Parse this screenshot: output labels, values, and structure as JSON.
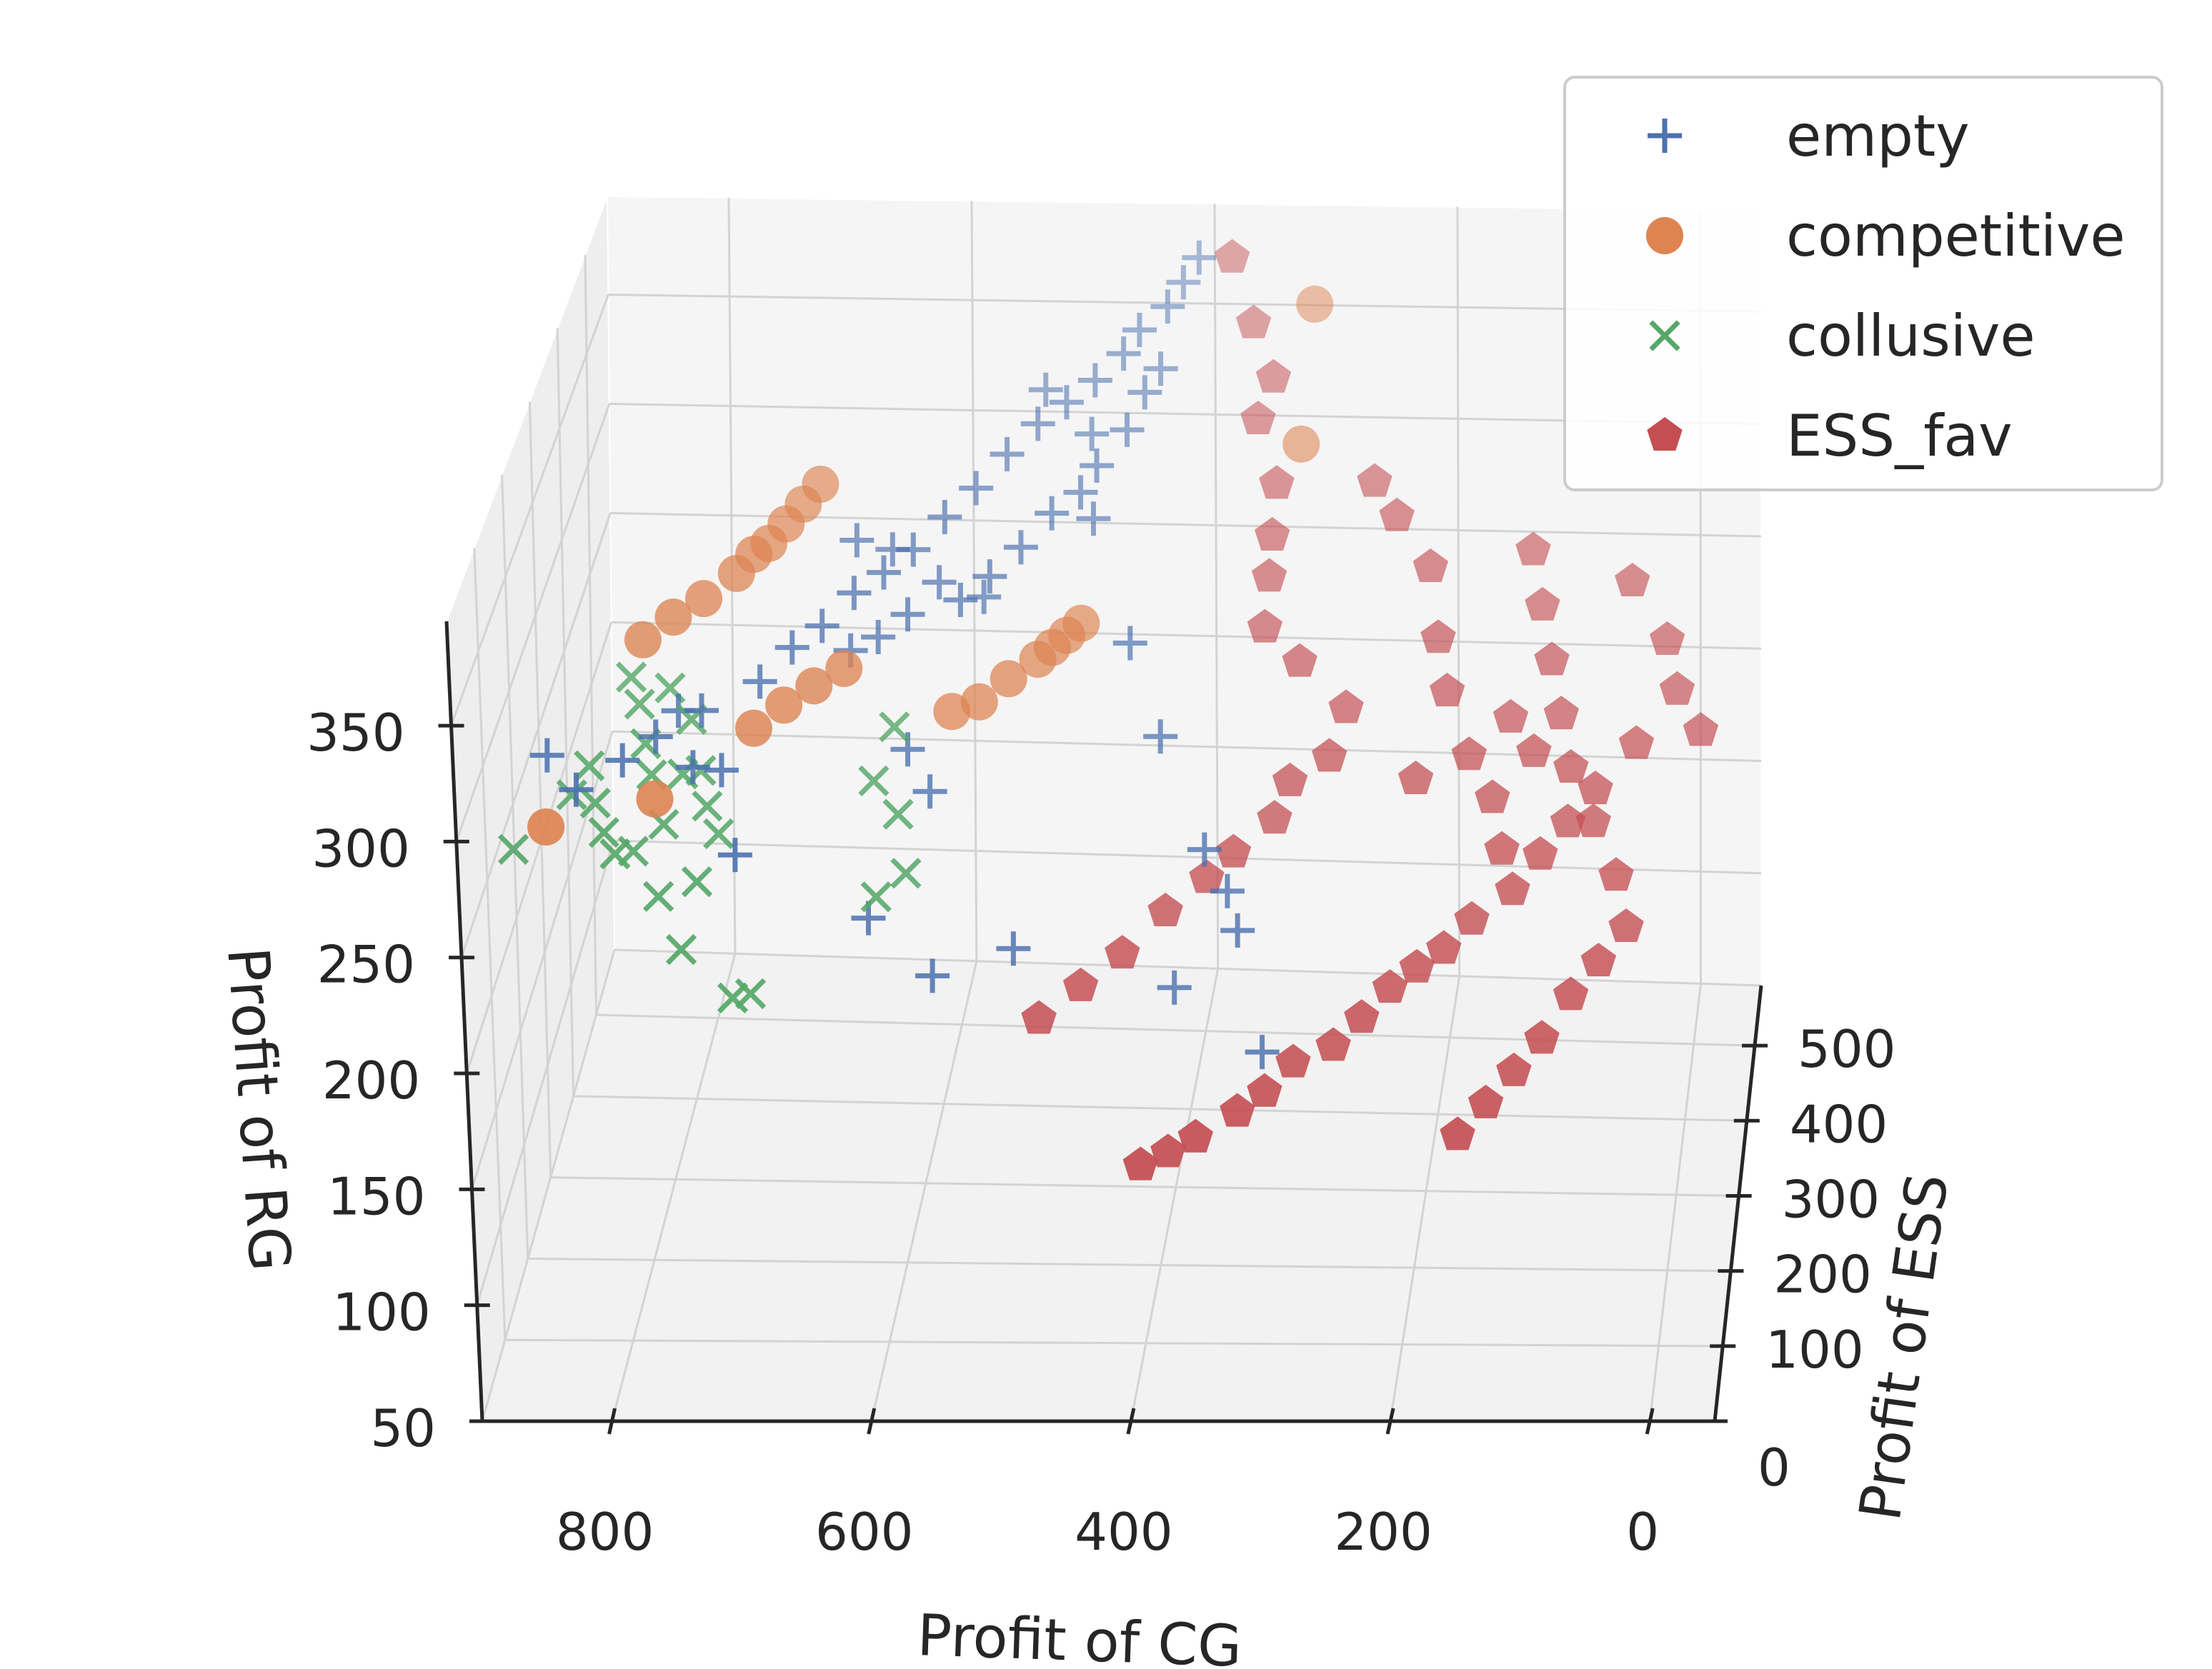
{
  "chart_data": {
    "type": "scatter",
    "projection": "3d",
    "xlabel": "Profit of CG",
    "ylabel": "Profit of ESS",
    "zlabel": "Profit of RG",
    "x_ticks": [
      "800",
      "600",
      "400",
      "200",
      "0"
    ],
    "y_ticks": [
      "0",
      "100",
      "200",
      "300",
      "400",
      "500"
    ],
    "z_ticks": [
      "50",
      "100",
      "150",
      "200",
      "250",
      "300",
      "350"
    ],
    "xlim": [
      -50,
      900
    ],
    "ylim": [
      0,
      580
    ],
    "zlim": [
      50,
      395
    ],
    "grid": true,
    "legend_position": "top-right",
    "series": [
      {
        "name": "empty",
        "marker": "plus",
        "color": "#4c72b0",
        "points": [
          [
            850,
            100,
            310
          ],
          [
            820,
            60,
            312
          ],
          [
            790,
            90,
            318
          ],
          [
            770,
            120,
            320
          ],
          [
            740,
            150,
            324
          ],
          [
            700,
            180,
            330
          ],
          [
            680,
            210,
            336
          ],
          [
            660,
            230,
            340
          ],
          [
            640,
            260,
            345
          ],
          [
            620,
            280,
            348
          ],
          [
            600,
            300,
            352
          ],
          [
            580,
            330,
            356
          ],
          [
            560,
            360,
            358
          ],
          [
            540,
            390,
            362
          ],
          [
            520,
            420,
            364
          ],
          [
            500,
            440,
            366
          ],
          [
            480,
            460,
            368
          ],
          [
            460,
            480,
            372
          ],
          [
            450,
            500,
            374
          ],
          [
            430,
            520,
            376
          ],
          [
            420,
            540,
            378
          ],
          [
            410,
            560,
            380
          ],
          [
            560,
            280,
            340
          ],
          [
            540,
            300,
            344
          ],
          [
            520,
            330,
            346
          ],
          [
            500,
            360,
            350
          ],
          [
            480,
            380,
            352
          ],
          [
            620,
            250,
            330
          ],
          [
            600,
            270,
            334
          ],
          [
            580,
            300,
            338
          ],
          [
            470,
            400,
            356
          ],
          [
            450,
            430,
            360
          ],
          [
            440,
            460,
            364
          ],
          [
            430,
            480,
            366
          ],
          [
            640,
            240,
            326
          ],
          [
            610,
            120,
            250
          ],
          [
            560,
            110,
            230
          ],
          [
            500,
            130,
            240
          ],
          [
            380,
            160,
            215
          ],
          [
            310,
            140,
            195
          ],
          [
            470,
            380,
            340
          ],
          [
            430,
            300,
            320
          ],
          [
            400,
            250,
            300
          ],
          [
            360,
            200,
            270
          ],
          [
            340,
            180,
            260
          ],
          [
            330,
            160,
            250
          ],
          [
            550,
            330,
            320
          ],
          [
            590,
            200,
            300
          ],
          [
            570,
            180,
            290
          ],
          [
            480,
            440,
            352
          ],
          [
            520,
            460,
            362
          ],
          [
            700,
            60,
            296
          ],
          [
            720,
            120,
            310
          ],
          [
            740,
            110,
            313
          ],
          [
            760,
            160,
            318
          ],
          [
            620,
            320,
            342
          ],
          [
            650,
            330,
            340
          ]
        ]
      },
      {
        "name": "competitive",
        "marker": "circle",
        "color": "#dd8452",
        "points": [
          [
            790,
            180,
            340
          ],
          [
            770,
            200,
            345
          ],
          [
            750,
            220,
            348
          ],
          [
            730,
            250,
            350
          ],
          [
            720,
            270,
            352
          ],
          [
            710,
            280,
            354
          ],
          [
            700,
            300,
            356
          ],
          [
            690,
            320,
            358
          ],
          [
            680,
            340,
            360
          ],
          [
            840,
            40,
            300
          ],
          [
            700,
            150,
            320
          ],
          [
            680,
            170,
            325
          ],
          [
            660,
            190,
            328
          ],
          [
            640,
            210,
            330
          ],
          [
            560,
            230,
            308
          ],
          [
            540,
            240,
            310
          ],
          [
            520,
            260,
            314
          ],
          [
            500,
            280,
            316
          ],
          [
            490,
            290,
            318
          ],
          [
            480,
            300,
            320
          ],
          [
            470,
            310,
            322
          ],
          [
            310,
            520,
            380
          ],
          [
            310,
            430,
            360
          ],
          [
            760,
            60,
            315
          ]
        ]
      },
      {
        "name": "collusive",
        "marker": "x",
        "color": "#55a868",
        "points": [
          [
            810,
            80,
            300
          ],
          [
            800,
            60,
            295
          ],
          [
            790,
            50,
            290
          ],
          [
            780,
            70,
            285
          ],
          [
            770,
            100,
            310
          ],
          [
            760,
            90,
            292
          ],
          [
            750,
            120,
            305
          ],
          [
            740,
            140,
            300
          ],
          [
            730,
            60,
            280
          ],
          [
            720,
            100,
            288
          ],
          [
            820,
            110,
            305
          ],
          [
            830,
            90,
            298
          ],
          [
            760,
            60,
            270
          ],
          [
            740,
            40,
            255
          ],
          [
            700,
            30,
            240
          ],
          [
            690,
            50,
            235
          ],
          [
            780,
            130,
            312
          ],
          [
            790,
            160,
            318
          ],
          [
            800,
            180,
            322
          ],
          [
            610,
            160,
            300
          ],
          [
            600,
            200,
            310
          ],
          [
            590,
            150,
            290
          ],
          [
            580,
            120,
            275
          ],
          [
            600,
            100,
            270
          ],
          [
            870,
            60,
            280
          ],
          [
            750,
            160,
            315
          ],
          [
            770,
            180,
            320
          ],
          [
            730,
            110,
            296
          ]
        ]
      },
      {
        "name": "ESS_fav",
        "marker": "pentagon",
        "color": "#c44e52",
        "points": [
          [
            380,
            540,
            390
          ],
          [
            360,
            520,
            370
          ],
          [
            340,
            490,
            360
          ],
          [
            350,
            470,
            350
          ],
          [
            330,
            430,
            340
          ],
          [
            330,
            400,
            330
          ],
          [
            330,
            380,
            320
          ],
          [
            330,
            350,
            310
          ],
          [
            300,
            330,
            305
          ],
          [
            260,
            300,
            300
          ],
          [
            270,
            270,
            290
          ],
          [
            300,
            260,
            280
          ],
          [
            310,
            240,
            270
          ],
          [
            340,
            220,
            260
          ],
          [
            360,
            210,
            250
          ],
          [
            390,
            190,
            240
          ],
          [
            420,
            160,
            230
          ],
          [
            450,
            140,
            220
          ],
          [
            480,
            120,
            210
          ],
          [
            250,
            420,
            350
          ],
          [
            230,
            400,
            345
          ],
          [
            200,
            370,
            338
          ],
          [
            190,
            330,
            325
          ],
          [
            180,
            300,
            315
          ],
          [
            160,
            270,
            300
          ],
          [
            140,
            250,
            290
          ],
          [
            130,
            220,
            280
          ],
          [
            200,
            250,
            295
          ],
          [
            120,
            390,
            340
          ],
          [
            110,
            360,
            330
          ],
          [
            100,
            330,
            320
          ],
          [
            90,
            300,
            310
          ],
          [
            80,
            270,
            300
          ],
          [
            60,
            240,
            290
          ],
          [
            40,
            210,
            280
          ],
          [
            30,
            180,
            270
          ],
          [
            50,
            160,
            260
          ],
          [
            70,
            140,
            250
          ],
          [
            90,
            110,
            240
          ],
          [
            110,
            90,
            230
          ],
          [
            130,
            70,
            220
          ],
          [
            150,
            50,
            210
          ],
          [
            130,
            300,
            305
          ],
          [
            110,
            280,
            300
          ],
          [
            40,
            380,
            335
          ],
          [
            10,
            350,
            325
          ],
          [
            0,
            320,
            318
          ],
          [
            -20,
            300,
            310
          ],
          [
            30,
            290,
            305
          ],
          [
            60,
            260,
            296
          ],
          [
            80,
            240,
            288
          ],
          [
            100,
            220,
            280
          ],
          [
            120,
            200,
            270
          ],
          [
            150,
            180,
            262
          ],
          [
            170,
            160,
            255
          ],
          [
            190,
            150,
            248
          ],
          [
            210,
            140,
            240
          ],
          [
            230,
            120,
            232
          ],
          [
            250,
            100,
            225
          ],
          [
            280,
            90,
            218
          ],
          [
            300,
            70,
            210
          ],
          [
            320,
            60,
            202
          ],
          [
            350,
            40,
            195
          ],
          [
            370,
            30,
            190
          ],
          [
            390,
            20,
            186
          ]
        ]
      }
    ]
  }
}
